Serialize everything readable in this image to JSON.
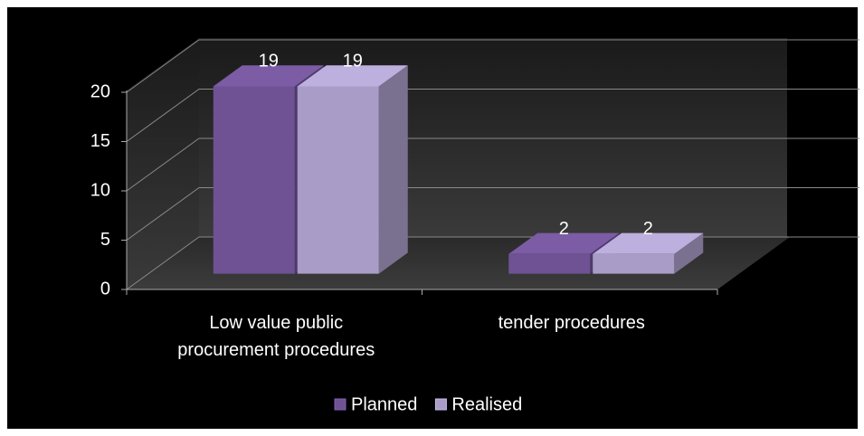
{
  "chart_data": {
    "type": "bar3d",
    "categories": [
      "Low value public procurement procedures",
      "tender procedures"
    ],
    "series": [
      {
        "name": "Planned",
        "color": "#6e5293",
        "values": [
          19,
          2
        ]
      },
      {
        "name": "Realised",
        "color": "#a99cc6",
        "values": [
          19,
          2
        ]
      }
    ],
    "ylim": [
      0,
      20
    ],
    "yticks": [
      0,
      5,
      10,
      15,
      20
    ],
    "grid": true,
    "legend": "bottom"
  }
}
